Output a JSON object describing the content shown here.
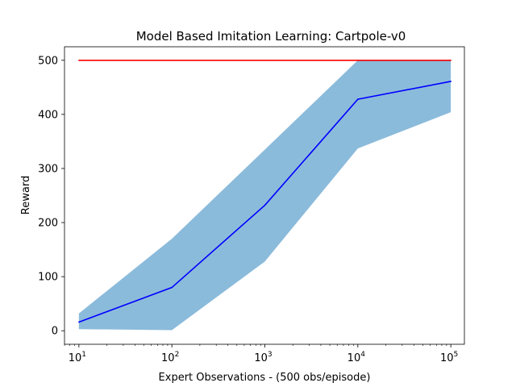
{
  "chart_data": {
    "type": "line",
    "title": "Model Based Imitation Learning: Cartpole-v0",
    "xlabel": "Expert Observations - (500 obs/episode)",
    "ylabel": "Reward",
    "x_scale": "log",
    "x": [
      10,
      100,
      1000,
      10000,
      100000
    ],
    "xlim": [
      7,
      140000
    ],
    "ylim": [
      -25,
      525
    ],
    "x_ticks": [
      {
        "value": 10,
        "base": "10",
        "exp": "1"
      },
      {
        "value": 100,
        "base": "10",
        "exp": "2"
      },
      {
        "value": 1000,
        "base": "10",
        "exp": "3"
      },
      {
        "value": 10000,
        "base": "10",
        "exp": "4"
      },
      {
        "value": 100000,
        "base": "10",
        "exp": "5"
      }
    ],
    "y_ticks": [
      {
        "value": 0,
        "label": "0"
      },
      {
        "value": 100,
        "label": "100"
      },
      {
        "value": 200,
        "label": "200"
      },
      {
        "value": 300,
        "label": "300"
      },
      {
        "value": 400,
        "label": "400"
      },
      {
        "value": 500,
        "label": "500"
      }
    ],
    "series": [
      {
        "values": [
          500,
          500,
          500,
          500,
          500
        ],
        "color": "#ff0000"
      },
      {
        "values": [
          16,
          80,
          232,
          428,
          461
        ],
        "color": "#0000ff"
      }
    ],
    "band": {
      "lower": [
        3,
        1,
        128,
        337,
        404
      ],
      "upper": [
        32,
        170,
        335,
        500,
        500
      ],
      "color": "#8bbbdb"
    },
    "grid": false,
    "legend": "none"
  }
}
